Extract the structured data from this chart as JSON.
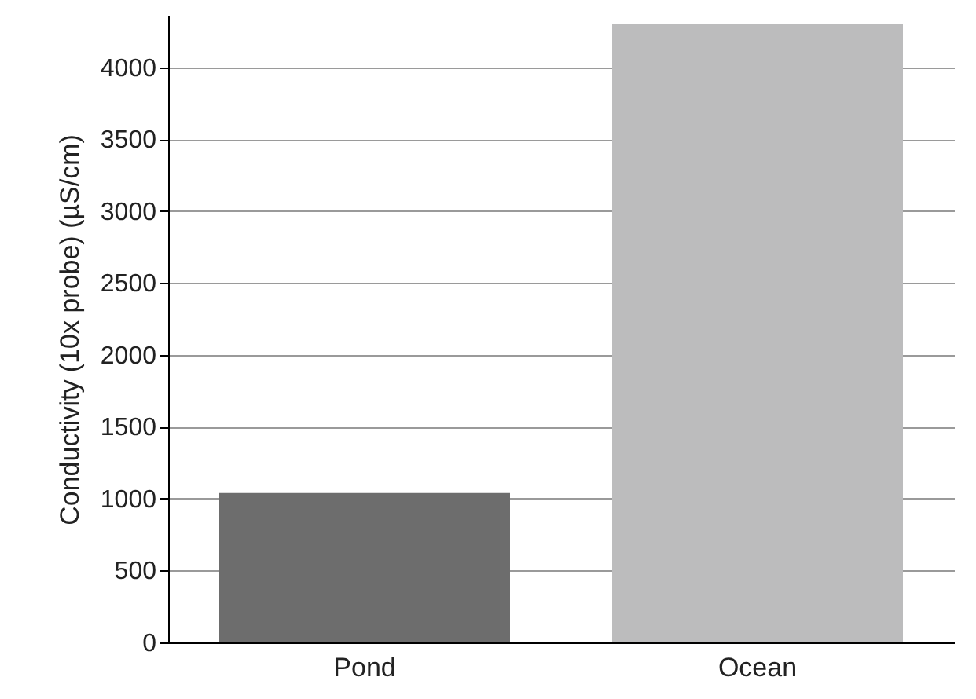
{
  "chart_data": {
    "type": "bar",
    "ylabel": "Conductivity (10x probe) (µS/cm)",
    "categories": [
      "Pond",
      "Ocean"
    ],
    "values": [
      1040,
      4300
    ],
    "colors": [
      "#6d6d6d",
      "#bcbcbd"
    ],
    "ylim": [
      0,
      4360
    ],
    "yticks": [
      0,
      500,
      1000,
      1500,
      2000,
      2500,
      3000,
      3500,
      4000
    ],
    "grid": "y"
  }
}
